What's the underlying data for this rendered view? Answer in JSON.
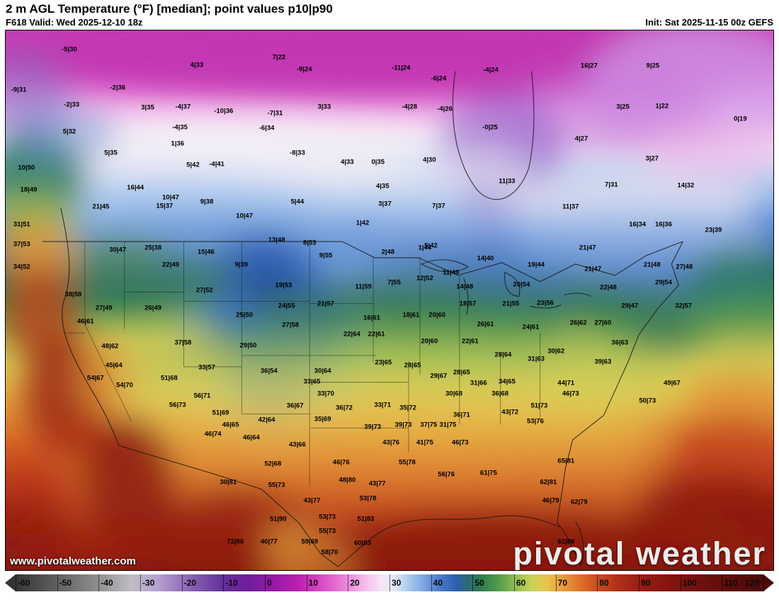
{
  "header": {
    "title": "2 m AGL Temperature (°F) [median]; point values p10|p90",
    "valid": "F618 Valid: Wed 2025-12-10 18z",
    "init": "Init: Sat 2025-11-15 00z GEFS"
  },
  "watermark": {
    "site": "www.pivotalweather.com",
    "brand": "pivotal weather"
  },
  "colorbar": {
    "ticks": [
      -60,
      -50,
      -40,
      -30,
      -20,
      -10,
      0,
      10,
      20,
      30,
      40,
      50,
      60,
      70,
      80,
      90,
      100,
      110,
      120
    ],
    "stops": [
      {
        "t": -60,
        "c": "#353535"
      },
      {
        "t": -50,
        "c": "#606060"
      },
      {
        "t": -40,
        "c": "#909090"
      },
      {
        "t": -32,
        "c": "#c0bdc6"
      },
      {
        "t": -26,
        "c": "#b5a2d2"
      },
      {
        "t": -18,
        "c": "#8a63b4"
      },
      {
        "t": -10,
        "c": "#63309a"
      },
      {
        "t": -4,
        "c": "#701d9c"
      },
      {
        "t": 2,
        "c": "#951aa6"
      },
      {
        "t": 8,
        "c": "#bb1fae"
      },
      {
        "t": 14,
        "c": "#da4ec4"
      },
      {
        "t": 20,
        "c": "#ef8ade"
      },
      {
        "t": 25,
        "c": "#f6c6ef"
      },
      {
        "t": 28,
        "c": "#f4e6f6"
      },
      {
        "t": 31,
        "c": "#e4ecf8"
      },
      {
        "t": 34,
        "c": "#b3cfef"
      },
      {
        "t": 38,
        "c": "#7fa9e2"
      },
      {
        "t": 42,
        "c": "#4a7ccc"
      },
      {
        "t": 46,
        "c": "#2f5fae"
      },
      {
        "t": 49,
        "c": "#2d6a74"
      },
      {
        "t": 52,
        "c": "#2e7d4f"
      },
      {
        "t": 56,
        "c": "#4f9a4c"
      },
      {
        "t": 60,
        "c": "#8eba50"
      },
      {
        "t": 64,
        "c": "#c9d257"
      },
      {
        "t": 68,
        "c": "#e7c44a"
      },
      {
        "t": 72,
        "c": "#e89b3c"
      },
      {
        "t": 76,
        "c": "#dd7029"
      },
      {
        "t": 80,
        "c": "#c94d20"
      },
      {
        "t": 85,
        "c": "#b0301a"
      },
      {
        "t": 90,
        "c": "#991f13"
      },
      {
        "t": 97,
        "c": "#84150e"
      },
      {
        "t": 105,
        "c": "#6e100c"
      },
      {
        "t": 113,
        "c": "#5a0c09"
      },
      {
        "t": 120,
        "c": "#4a0a08"
      }
    ]
  },
  "map": {
    "points": [
      [
        8.3,
        3.5,
        "-5|30"
      ],
      [
        24.9,
        6.4,
        "4|33"
      ],
      [
        35.6,
        5.0,
        "7|22"
      ],
      [
        38.9,
        7.2,
        "-9|24"
      ],
      [
        51.5,
        7.0,
        "-11|24"
      ],
      [
        56.4,
        8.9,
        "-6|24"
      ],
      [
        63.2,
        7.4,
        "-4|24"
      ],
      [
        76.0,
        6.6,
        "16|27"
      ],
      [
        84.3,
        6.5,
        "9|25"
      ],
      [
        1.7,
        11.0,
        "-9|31"
      ],
      [
        14.6,
        10.6,
        "-2|36"
      ],
      [
        8.6,
        13.8,
        "-2|33"
      ],
      [
        18.5,
        14.3,
        "3|35"
      ],
      [
        23.1,
        14.2,
        "-4|37"
      ],
      [
        28.4,
        14.9,
        "-10|36"
      ],
      [
        35.1,
        15.3,
        "-7|31"
      ],
      [
        41.5,
        14.2,
        "3|33"
      ],
      [
        52.6,
        14.2,
        "-4|28"
      ],
      [
        57.2,
        14.6,
        "-4|26"
      ],
      [
        80.4,
        14.2,
        "3|25"
      ],
      [
        85.5,
        14.1,
        "1|22"
      ],
      [
        8.3,
        18.8,
        "5|32"
      ],
      [
        22.7,
        18.0,
        "-4|35"
      ],
      [
        34.0,
        18.1,
        "-6|34"
      ],
      [
        63.1,
        18.0,
        "-0|25"
      ],
      [
        95.7,
        16.4,
        "0|19"
      ],
      [
        13.7,
        22.7,
        "5|35"
      ],
      [
        22.4,
        21.0,
        "1|36"
      ],
      [
        38.0,
        22.7,
        "-8|33"
      ],
      [
        75.0,
        20.1,
        "4|27"
      ],
      [
        24.4,
        24.9,
        "5|42"
      ],
      [
        27.5,
        24.8,
        "-4|41"
      ],
      [
        44.5,
        24.4,
        "4|33"
      ],
      [
        48.5,
        24.4,
        "0|35"
      ],
      [
        55.2,
        24.0,
        "4|30"
      ],
      [
        84.2,
        23.7,
        "3|27"
      ],
      [
        2.7,
        25.4,
        "10|50"
      ],
      [
        3.0,
        29.5,
        "18|49"
      ],
      [
        16.9,
        29.1,
        "16|44"
      ],
      [
        21.5,
        31.0,
        "10|47"
      ],
      [
        49.1,
        28.9,
        "4|35"
      ],
      [
        65.3,
        27.9,
        "11|33"
      ],
      [
        78.9,
        28.6,
        "7|31"
      ],
      [
        88.6,
        28.7,
        "14|32"
      ],
      [
        12.4,
        32.7,
        "21|45"
      ],
      [
        20.7,
        32.6,
        "15|37"
      ],
      [
        26.2,
        31.8,
        "9|38"
      ],
      [
        31.1,
        34.4,
        "10|47"
      ],
      [
        38.0,
        31.8,
        "5|44"
      ],
      [
        49.4,
        32.1,
        "3|37"
      ],
      [
        56.4,
        32.5,
        "7|37"
      ],
      [
        73.6,
        32.7,
        "11|37"
      ],
      [
        2.1,
        36.0,
        "31|51"
      ],
      [
        46.5,
        35.7,
        "1|42"
      ],
      [
        82.3,
        35.9,
        "16|34"
      ],
      [
        85.7,
        35.9,
        "16|36"
      ],
      [
        92.2,
        37.0,
        "23|39"
      ],
      [
        2.1,
        39.6,
        "37|53"
      ],
      [
        14.6,
        40.7,
        "30|47"
      ],
      [
        19.2,
        40.3,
        "25|38"
      ],
      [
        26.1,
        41.1,
        "15|46"
      ],
      [
        35.3,
        38.9,
        "13|48"
      ],
      [
        39.6,
        39.4,
        "8|53"
      ],
      [
        54.6,
        40.3,
        "1|44"
      ],
      [
        75.8,
        40.3,
        "21|47"
      ],
      [
        2.1,
        43.8,
        "34|52"
      ],
      [
        21.5,
        43.5,
        "22|49"
      ],
      [
        30.7,
        43.5,
        "9|39"
      ],
      [
        41.7,
        41.7,
        "9|55"
      ],
      [
        49.8,
        41.1,
        "2|48"
      ],
      [
        55.4,
        39.9,
        "5|42"
      ],
      [
        62.5,
        42.2,
        "14|40"
      ],
      [
        69.1,
        43.5,
        "19|44"
      ],
      [
        58.0,
        44.9,
        "11|49"
      ],
      [
        84.2,
        43.5,
        "21|48"
      ],
      [
        88.4,
        43.8,
        "27|48"
      ],
      [
        76.5,
        44.2,
        "21|47"
      ],
      [
        8.8,
        49.0,
        "38|58"
      ],
      [
        25.9,
        48.1,
        "27|52"
      ],
      [
        36.2,
        47.2,
        "19|53"
      ],
      [
        46.6,
        47.5,
        "11|59"
      ],
      [
        50.6,
        46.7,
        "7|55"
      ],
      [
        54.6,
        45.9,
        "12|52"
      ],
      [
        59.8,
        47.5,
        "14|48"
      ],
      [
        67.2,
        47.1,
        "20|54"
      ],
      [
        78.5,
        47.6,
        "22|48"
      ],
      [
        85.7,
        46.7,
        "29|54"
      ],
      [
        12.8,
        51.4,
        "27|49"
      ],
      [
        19.2,
        51.4,
        "26|49"
      ],
      [
        31.1,
        52.7,
        "25|50"
      ],
      [
        36.6,
        51.0,
        "24|55"
      ],
      [
        41.7,
        50.6,
        "21|57"
      ],
      [
        60.2,
        50.6,
        "18|57"
      ],
      [
        65.8,
        50.6,
        "21|55"
      ],
      [
        70.3,
        50.5,
        "23|56"
      ],
      [
        74.6,
        54.2,
        "26|62"
      ],
      [
        77.8,
        54.2,
        "27|60"
      ],
      [
        81.3,
        51.1,
        "29|47"
      ],
      [
        88.3,
        51.0,
        "32|57"
      ],
      [
        10.4,
        54.0,
        "46|61"
      ],
      [
        13.6,
        58.5,
        "48|62"
      ],
      [
        23.1,
        57.9,
        "37|58"
      ],
      [
        37.1,
        54.6,
        "27|58"
      ],
      [
        47.7,
        53.3,
        "16|61"
      ],
      [
        52.8,
        52.7,
        "18|61"
      ],
      [
        56.2,
        52.7,
        "20|60"
      ],
      [
        62.5,
        54.5,
        "26|61"
      ],
      [
        68.4,
        55.0,
        "24|61"
      ],
      [
        45.1,
        56.3,
        "22|64"
      ],
      [
        48.3,
        56.3,
        "22|61"
      ],
      [
        55.2,
        57.6,
        "20|60"
      ],
      [
        60.5,
        57.6,
        "22|61"
      ],
      [
        31.6,
        58.4,
        "29|50"
      ],
      [
        71.7,
        59.5,
        "30|62"
      ],
      [
        64.8,
        60.1,
        "28|64"
      ],
      [
        69.1,
        60.9,
        "31|63"
      ],
      [
        80.0,
        57.9,
        "36|63"
      ],
      [
        77.8,
        61.4,
        "39|63"
      ],
      [
        26.2,
        62.5,
        "33|57"
      ],
      [
        34.3,
        63.1,
        "36|54"
      ],
      [
        41.3,
        63.1,
        "30|64"
      ],
      [
        49.2,
        61.5,
        "23|65"
      ],
      [
        53.0,
        62.1,
        "28|65"
      ],
      [
        56.4,
        64.1,
        "29|67"
      ],
      [
        59.4,
        63.4,
        "28|65"
      ],
      [
        65.3,
        65.1,
        "34|65"
      ],
      [
        61.6,
        65.4,
        "31|66"
      ],
      [
        14.1,
        62.1,
        "45|64"
      ],
      [
        11.7,
        64.5,
        "54|67"
      ],
      [
        21.3,
        64.5,
        "51|68"
      ],
      [
        15.5,
        65.7,
        "54|70"
      ],
      [
        25.6,
        67.7,
        "56|71"
      ],
      [
        39.9,
        65.1,
        "33|65"
      ],
      [
        41.7,
        67.3,
        "33|70"
      ],
      [
        58.4,
        67.3,
        "30|68"
      ],
      [
        64.4,
        67.3,
        "36|68"
      ],
      [
        73.0,
        65.4,
        "44|71"
      ],
      [
        73.6,
        67.3,
        "46|73"
      ],
      [
        86.8,
        65.4,
        "49|67"
      ],
      [
        83.6,
        68.6,
        "50|73"
      ],
      [
        22.4,
        69.4,
        "56|73"
      ],
      [
        37.7,
        69.6,
        "36|67"
      ],
      [
        44.1,
        69.9,
        "36|72"
      ],
      [
        49.1,
        69.4,
        "33|71"
      ],
      [
        52.4,
        69.9,
        "35|72"
      ],
      [
        28.0,
        70.9,
        "51|69"
      ],
      [
        41.3,
        72.0,
        "35|69"
      ],
      [
        59.4,
        71.2,
        "36|71"
      ],
      [
        65.7,
        70.7,
        "43|72"
      ],
      [
        69.5,
        69.6,
        "51|73"
      ],
      [
        69.0,
        72.5,
        "53|76"
      ],
      [
        29.3,
        73.1,
        "46|65"
      ],
      [
        34.0,
        72.2,
        "42|64"
      ],
      [
        47.8,
        73.5,
        "39|73"
      ],
      [
        51.8,
        73.1,
        "39|73"
      ],
      [
        55.1,
        73.1,
        "37|75"
      ],
      [
        57.6,
        73.1,
        "31|75"
      ],
      [
        27.0,
        74.8,
        "46|74"
      ],
      [
        32.0,
        75.5,
        "46|64"
      ],
      [
        38.0,
        76.8,
        "43|66"
      ],
      [
        50.2,
        76.4,
        "43|76"
      ],
      [
        54.6,
        76.4,
        "41|75"
      ],
      [
        59.2,
        76.4,
        "46|73"
      ],
      [
        34.8,
        80.3,
        "52|68"
      ],
      [
        43.7,
        80.1,
        "46|76"
      ],
      [
        52.3,
        80.1,
        "55|78"
      ],
      [
        62.9,
        82.0,
        "61|75"
      ],
      [
        73.0,
        79.8,
        "65|81"
      ],
      [
        29.0,
        83.7,
        "30|81"
      ],
      [
        35.3,
        84.2,
        "55|73"
      ],
      [
        44.5,
        83.3,
        "48|80"
      ],
      [
        48.4,
        84.0,
        "43|77"
      ],
      [
        57.4,
        82.3,
        "56|76"
      ],
      [
        70.7,
        83.7,
        "62|81"
      ],
      [
        39.9,
        87.2,
        "43|77"
      ],
      [
        47.2,
        86.8,
        "53|78"
      ],
      [
        71.0,
        87.2,
        "46|79"
      ],
      [
        74.7,
        87.4,
        "62|79"
      ],
      [
        35.5,
        90.5,
        "51|90"
      ],
      [
        41.9,
        90.2,
        "53|73"
      ],
      [
        46.9,
        90.5,
        "51|83"
      ],
      [
        41.9,
        92.8,
        "55|73"
      ],
      [
        29.9,
        94.7,
        "72|80"
      ],
      [
        34.3,
        94.7,
        "40|77"
      ],
      [
        39.6,
        94.7,
        "59|69"
      ],
      [
        42.2,
        96.7,
        "58|70"
      ],
      [
        46.5,
        95.0,
        "60|83"
      ],
      [
        73.0,
        94.7,
        "61|86"
      ]
    ]
  }
}
